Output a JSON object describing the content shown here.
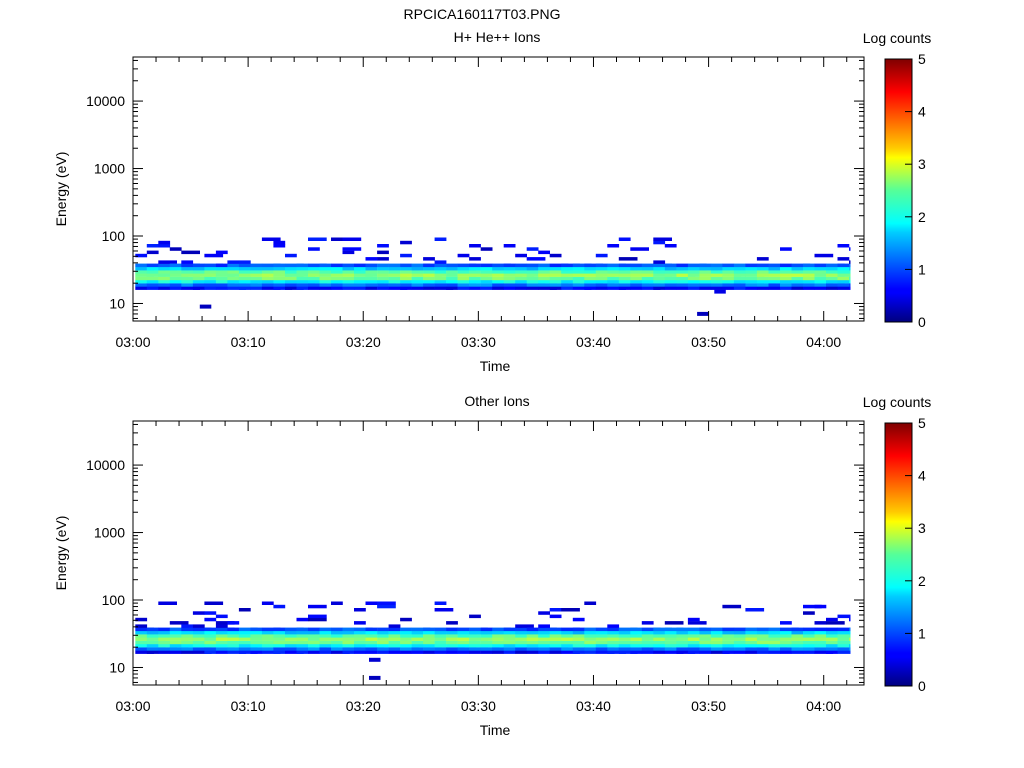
{
  "figure_title": "RPCICA160117T03.PNG",
  "chart_data": [
    {
      "type": "heatmap",
      "title": "H+ He++ Ions",
      "xlabel": "Time",
      "ylabel": "Energy (eV)",
      "x_ticks": [
        "03:00",
        "03:10",
        "03:20",
        "03:30",
        "03:40",
        "03:50",
        "04:00"
      ],
      "x_range_minutes": [
        0,
        63.5
      ],
      "y_scale": "log",
      "y_range": [
        5.5,
        45000
      ],
      "y_ticks": [
        "10",
        "100",
        "1000",
        "10000"
      ],
      "colorbar": {
        "label": "Log counts",
        "range": [
          0,
          5
        ],
        "ticks": [
          "0",
          "1",
          "2",
          "3",
          "4",
          "5"
        ]
      },
      "band_energy_range_ev": [
        16,
        95
      ],
      "band_peak_energy_ev": 26,
      "band_peak_log_counts": 2.6,
      "isolated_points": [
        {
          "time_min": 5.8,
          "energy_ev": 9,
          "log_counts": 0.3
        },
        {
          "time_min": 49.0,
          "energy_ev": 7,
          "log_counts": 0.3
        },
        {
          "time_min": 50.5,
          "energy_ev": 15,
          "log_counts": 0.5
        }
      ]
    },
    {
      "type": "heatmap",
      "title": "Other Ions",
      "xlabel": "Time",
      "ylabel": "Energy (eV)",
      "x_ticks": [
        "03:00",
        "03:10",
        "03:20",
        "03:30",
        "03:40",
        "03:50",
        "04:00"
      ],
      "x_range_minutes": [
        0,
        63.5
      ],
      "y_scale": "log",
      "y_range": [
        5.5,
        45000
      ],
      "y_ticks": [
        "10",
        "100",
        "1000",
        "10000"
      ],
      "colorbar": {
        "label": "Log counts",
        "range": [
          0,
          5
        ],
        "ticks": [
          "0",
          "1",
          "2",
          "3",
          "4",
          "5"
        ]
      },
      "band_energy_range_ev": [
        16,
        95
      ],
      "band_peak_energy_ev": 26,
      "band_peak_log_counts": 2.6,
      "isolated_points": [
        {
          "time_min": 20.5,
          "energy_ev": 13,
          "log_counts": 0.4
        },
        {
          "time_min": 20.5,
          "energy_ev": 7,
          "log_counts": 0.3
        }
      ]
    }
  ]
}
